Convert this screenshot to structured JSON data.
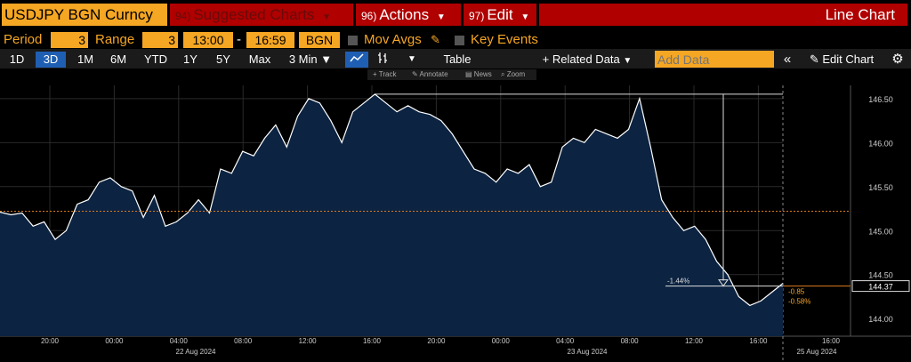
{
  "header": {
    "ticker": "USDJPY BGN Curncy",
    "suggested_num": "94)",
    "suggested_label": "Suggested Charts",
    "actions_num": "96)",
    "actions_label": "Actions",
    "edit_num": "97)",
    "edit_label": "Edit",
    "title": "Line Chart"
  },
  "params": {
    "period_label": "Period",
    "period_value": "3",
    "range_label": "Range",
    "range_value": "3",
    "time_start": "13:00",
    "time_sep": "-",
    "time_end": "16:59",
    "source": "BGN",
    "mov_avgs": "Mov Avgs",
    "key_events": "Key Events"
  },
  "toolbar": {
    "ranges": [
      "1D",
      "3D",
      "1M",
      "6M",
      "YTD",
      "1Y",
      "5Y",
      "Max"
    ],
    "active_range": "3D",
    "interval": "3 Min",
    "table": "Table",
    "related": "Related Data",
    "add_data_placeholder": "Add Data",
    "edit_chart": "Edit Chart"
  },
  "subtoolbar": {
    "track": "Track",
    "annotate": "Annotate",
    "news": "News",
    "zoom": "Zoom"
  },
  "colors": {
    "accent_orange": "#f5a623",
    "header_red": "#b00000",
    "area_fill": "#0c2341",
    "line": "#ffffff",
    "ref_line": "#d97b1c",
    "active_blue": "#1f5fb3"
  },
  "chart_data": {
    "type": "line",
    "title": "",
    "xlabel": "",
    "ylabel": "",
    "ylim": [
      143.8,
      146.65
    ],
    "yticks": [
      "146.50",
      "146.00",
      "145.50",
      "145.00",
      "144.50",
      "144.00"
    ],
    "xticks": [
      "20:00",
      "00:00",
      "04:00",
      "08:00",
      "12:00",
      "16:00",
      "20:00",
      "00:00",
      "04:00",
      "08:00",
      "12:00",
      "16:00",
      "16:00"
    ],
    "date_labels": [
      "22 Aug 2024",
      "23 Aug 2024",
      "25 Aug 2024"
    ],
    "last_price": "144.37",
    "change_abs": "-0.85",
    "change_pct": "-0.58%",
    "drop_annotation": "-1.44%",
    "reference_level": 145.22,
    "series": [
      {
        "values": [
          145.21,
          145.18,
          145.2,
          145.05,
          145.1,
          144.9,
          145.0,
          145.3,
          145.35,
          145.55,
          145.6,
          145.5,
          145.45,
          145.15,
          145.4,
          145.05,
          145.1,
          145.2,
          145.35,
          145.2,
          145.7,
          145.65,
          145.9,
          145.85,
          146.05,
          146.2,
          145.95,
          146.3,
          146.5,
          146.45,
          146.25,
          146.0,
          146.35,
          146.45,
          146.55,
          146.45,
          146.35,
          146.42,
          146.35,
          146.32,
          146.25,
          146.1,
          145.9,
          145.7,
          145.65,
          145.55,
          145.7,
          145.65,
          145.75,
          145.5,
          145.55,
          145.95,
          146.05,
          146.0,
          146.15,
          146.1,
          146.05,
          146.15,
          146.5,
          145.95,
          145.35,
          145.15,
          145.0,
          145.05,
          144.9,
          144.65,
          144.5,
          144.25,
          144.15,
          144.2,
          144.3,
          144.4
        ]
      }
    ]
  }
}
